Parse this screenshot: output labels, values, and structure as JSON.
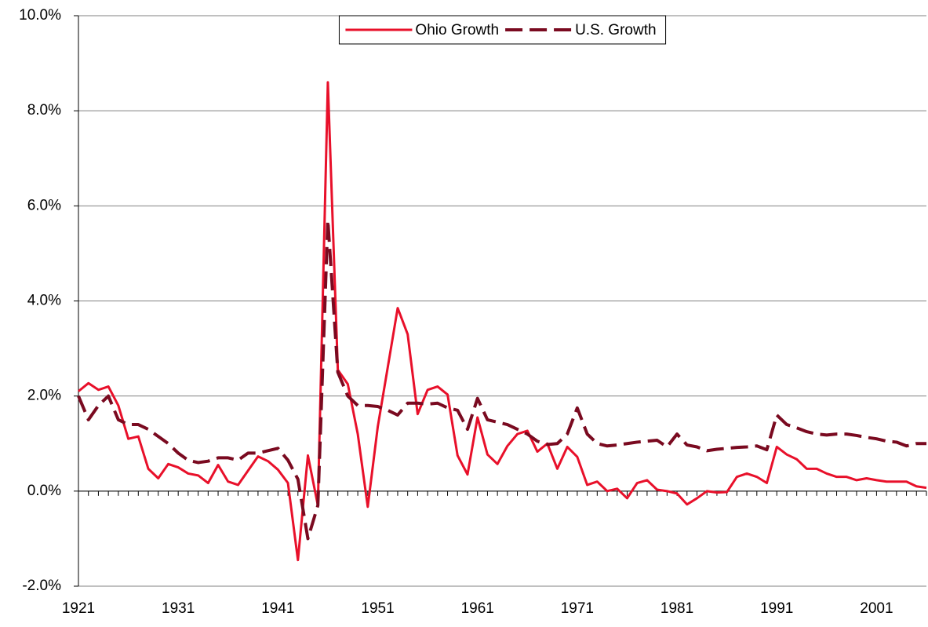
{
  "chart_data": {
    "type": "line",
    "x": [
      1921,
      1922,
      1923,
      1924,
      1925,
      1926,
      1927,
      1928,
      1929,
      1930,
      1931,
      1932,
      1933,
      1934,
      1935,
      1936,
      1937,
      1938,
      1939,
      1940,
      1941,
      1942,
      1943,
      1944,
      1945,
      1946,
      1947,
      1948,
      1949,
      1950,
      1951,
      1952,
      1953,
      1954,
      1955,
      1956,
      1957,
      1958,
      1959,
      1960,
      1961,
      1962,
      1963,
      1964,
      1965,
      1966,
      1967,
      1968,
      1969,
      1970,
      1971,
      1972,
      1973,
      1974,
      1975,
      1976,
      1977,
      1978,
      1979,
      1980,
      1981,
      1982,
      1983,
      1984,
      1985,
      1986,
      1987,
      1988,
      1989,
      1990,
      1991,
      1992,
      1993,
      1994,
      1995,
      1996,
      1997,
      1998,
      1999,
      2000,
      2001,
      2002,
      2003,
      2004,
      2005,
      2006
    ],
    "series": [
      {
        "name": "Ohio Growth",
        "color": "#e8102a",
        "dashed": false,
        "values": [
          2.1,
          2.27,
          2.13,
          2.2,
          1.8,
          1.1,
          1.15,
          0.47,
          0.27,
          0.57,
          0.5,
          0.37,
          0.33,
          0.17,
          0.55,
          0.2,
          0.13,
          0.43,
          0.73,
          0.63,
          0.45,
          0.17,
          -1.45,
          0.75,
          -0.3,
          8.6,
          2.55,
          2.25,
          1.2,
          -0.33,
          1.35,
          2.6,
          3.85,
          3.3,
          1.62,
          2.13,
          2.2,
          2.03,
          0.75,
          0.35,
          1.55,
          0.77,
          0.57,
          0.95,
          1.2,
          1.27,
          0.83,
          1.0,
          0.47,
          0.93,
          0.72,
          0.13,
          0.2,
          0.0,
          0.05,
          -0.15,
          0.17,
          0.23,
          0.03,
          0.0,
          -0.05,
          -0.28,
          -0.15,
          0.0,
          -0.03,
          -0.02,
          0.3,
          0.37,
          0.3,
          0.17,
          0.93,
          0.77,
          0.67,
          0.47,
          0.47,
          0.37,
          0.3,
          0.3,
          0.23,
          0.27,
          0.23,
          0.2,
          0.2,
          0.2,
          0.1,
          0.07
        ]
      },
      {
        "name": "U.S. Growth",
        "color": "#7a0a20",
        "dashed": true,
        "values": [
          2.0,
          1.5,
          1.8,
          2.0,
          1.5,
          1.4,
          1.4,
          1.3,
          1.15,
          1.0,
          0.8,
          0.65,
          0.6,
          0.63,
          0.7,
          0.7,
          0.65,
          0.8,
          0.8,
          0.85,
          0.9,
          0.65,
          0.25,
          -1.0,
          -0.3,
          5.7,
          2.5,
          2.0,
          1.8,
          1.8,
          1.78,
          1.7,
          1.6,
          1.85,
          1.85,
          1.83,
          1.85,
          1.75,
          1.7,
          1.3,
          1.95,
          1.5,
          1.45,
          1.4,
          1.3,
          1.2,
          1.05,
          0.98,
          1.0,
          1.2,
          1.75,
          1.2,
          1.0,
          0.95,
          0.97,
          1.0,
          1.03,
          1.05,
          1.07,
          0.93,
          1.2,
          0.97,
          0.93,
          0.85,
          0.88,
          0.9,
          0.92,
          0.93,
          0.95,
          0.87,
          1.6,
          1.4,
          1.33,
          1.25,
          1.2,
          1.18,
          1.2,
          1.2,
          1.17,
          1.13,
          1.1,
          1.05,
          1.03,
          0.95,
          1.0,
          1.0
        ]
      }
    ],
    "xlim": [
      1921,
      2006
    ],
    "xticks": [
      1921,
      1931,
      1941,
      1951,
      1961,
      1971,
      1981,
      1991,
      2001
    ],
    "ylim": [
      -2,
      10
    ],
    "yticks": [
      {
        "value": -2,
        "label": "-2.0%"
      },
      {
        "value": 0,
        "label": "0.0%"
      },
      {
        "value": 2,
        "label": "2.0%"
      },
      {
        "value": 4,
        "label": "4.0%"
      },
      {
        "value": 6,
        "label": "6.0%"
      },
      {
        "value": 8,
        "label": "8.0%"
      },
      {
        "value": 10,
        "label": "10.0%"
      }
    ],
    "grid": true,
    "legend": "top"
  }
}
